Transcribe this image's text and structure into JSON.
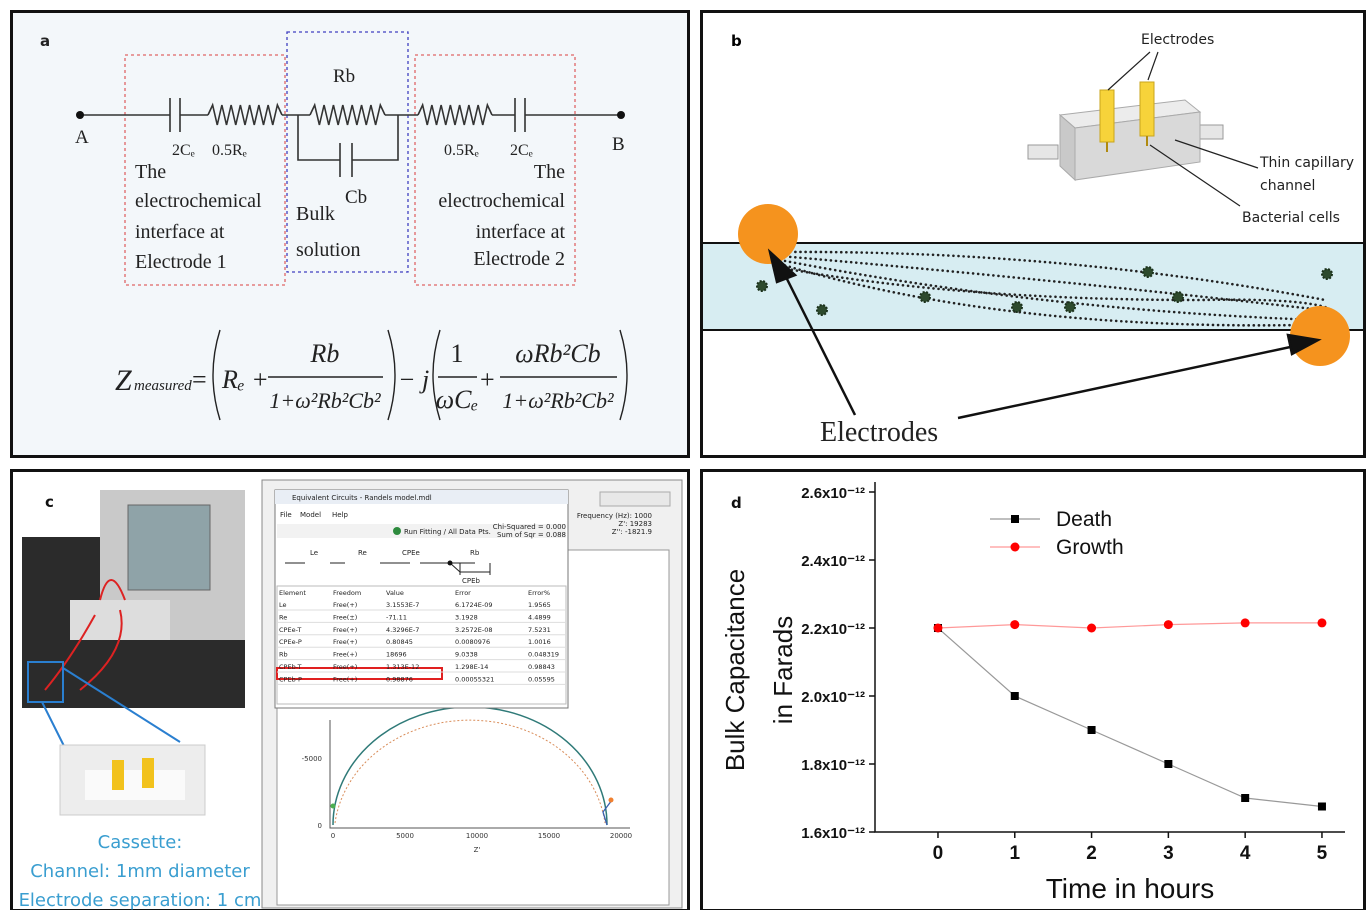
{
  "panel_a": {
    "label": "a",
    "node_a": "A",
    "node_b": "B",
    "ce_left": "2Cₑ",
    "re_left": "0.5Rₑ",
    "rb": "Rb",
    "cb": "Cb",
    "re_right": "0.5Rₑ",
    "ce_right": "2Cₑ",
    "interface_1": [
      "The",
      "electrochemical",
      "interface at",
      "Electrode 1"
    ],
    "bulk": [
      "Bulk",
      "solution"
    ],
    "interface_2": [
      "The",
      "electrochemical",
      "interface at",
      "Electrode 2"
    ],
    "equation": {
      "z": "Z",
      "z_sub": "measured",
      "eq": "=",
      "t1": "Rₑ +",
      "f1_num": "Rb",
      "f1_den": "1+ω²Rb²Cb²",
      "minus_j": "− j",
      "f2_num": "1",
      "f2_den": "ωCₑ",
      "plus": "+",
      "f3_num": "ωRb²Cb",
      "f3_den": "1+ω²Rb²Cb²"
    }
  },
  "panel_b": {
    "label": "b",
    "electrodes_top": "Electrodes",
    "capillary": [
      "Thin capillary",
      "channel"
    ],
    "cells": "Bacterial cells",
    "electrodes_bottom": "Electrodes"
  },
  "panel_c": {
    "label": "c",
    "window_title": "Equivalent Circuits - Randels model.mdl",
    "menu": [
      "File",
      "Model",
      "Help"
    ],
    "run_fitting": "Run Fitting / All Data Pts.",
    "chi_squared": "Chi-Squared = 0.000",
    "sum_sqr": "Sum of Sqr = 0.088",
    "frequency": "Frequency (Hz): 1000",
    "z_real": "Z': 19283",
    "z_imag": "Z'': -1821.9",
    "circuit": [
      "Le",
      "Re",
      "CPEe",
      "Rb",
      "CPEb"
    ],
    "table": {
      "headers": [
        "Element",
        "Freedom",
        "Value",
        "Error",
        "Error%"
      ],
      "rows": [
        [
          "Le",
          "Free(+)",
          "3.1553E-7",
          "6.1724E-09",
          "1.9565"
        ],
        [
          "Re",
          "Free(±)",
          "-71.11",
          "3.1928",
          "4.4899"
        ],
        [
          "CPEe-T",
          "Free(+)",
          "4.3296E-7",
          "3.2572E-08",
          "7.5231"
        ],
        [
          "CPEe-P",
          "Free(+)",
          "0.80845",
          "0.0080976",
          "1.0016"
        ],
        [
          "Rb",
          "Free(+)",
          "18696",
          "9.0338",
          "0.048319"
        ],
        [
          "CPEb-T",
          "Free(+)",
          "1.313E-12",
          "1.298E-14",
          "0.98843"
        ],
        [
          "CPEb-P",
          "Free(+)",
          "0.98876",
          "0.00055321",
          "0.05595"
        ]
      ]
    },
    "plot": {
      "y_ticks": [
        "-5000",
        "0"
      ],
      "x_ticks": [
        "0",
        "5000",
        "10000",
        "15000",
        "20000"
      ],
      "x_label": "Z'"
    },
    "caption": [
      "Cassette:",
      "Channel: 1mm diameter",
      "Electrode separation: 1 cm"
    ]
  },
  "chart_data": {
    "type": "line",
    "panel_label": "d",
    "x_label": "Time in hours",
    "y_label": [
      "Bulk Capacitance",
      "in Farads"
    ],
    "x": [
      0,
      1,
      2,
      3,
      4,
      5
    ],
    "series": [
      {
        "name": "Death",
        "color": "#000000",
        "line_color": "#999999",
        "marker": "square",
        "values": [
          2.2e-12,
          2e-12,
          1.9e-12,
          1.8e-12,
          1.7e-12,
          1.675e-12
        ]
      },
      {
        "name": "Growth",
        "color": "#ff0000",
        "line_color": "#ff9999",
        "marker": "circle",
        "values": [
          2.2e-12,
          2.21e-12,
          2.2e-12,
          2.21e-12,
          2.215e-12,
          2.215e-12
        ]
      }
    ],
    "xlim": [
      -0.82,
      5.3
    ],
    "ylim": [
      1.6e-12,
      2.6e-12
    ],
    "xticks": [
      0,
      1,
      2,
      3,
      4,
      5
    ],
    "yticks": [
      {
        "value": 1.6e-12,
        "label": "1.6x10⁻¹²"
      },
      {
        "value": 1.8e-12,
        "label": "1.8x10⁻¹²"
      },
      {
        "value": 2e-12,
        "label": "2.0x10⁻¹²"
      },
      {
        "value": 2.2e-12,
        "label": "2.2x10⁻¹²"
      },
      {
        "value": 2.4e-12,
        "label": "2.4x10⁻¹²"
      },
      {
        "value": 2.6e-12,
        "label": "2.6x10⁻¹²"
      }
    ],
    "legend": "upper left"
  }
}
